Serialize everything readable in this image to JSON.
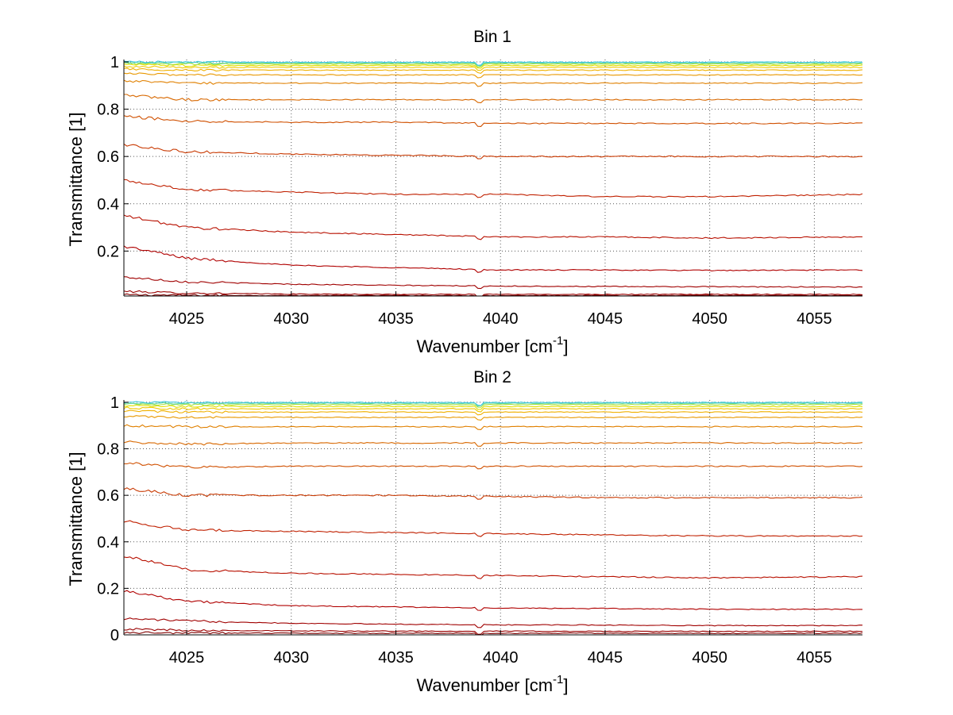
{
  "chart_data": [
    {
      "type": "line",
      "title": "Bin 1",
      "xlabel": "Wavenumber [cm",
      "xlabel_sup": "-1",
      "xlabel_end": "]",
      "ylabel": "Transmittance [1]",
      "xlim": [
        4022,
        4057.3
      ],
      "ylim": [
        0.01,
        1.01
      ],
      "xticks": [
        4025,
        4030,
        4035,
        4040,
        4045,
        4050,
        4055
      ],
      "xtick_labels": [
        "4025",
        "4030",
        "4035",
        "4040",
        "4045",
        "4050",
        "4055"
      ],
      "yticks": [
        0.2,
        0.4,
        0.6,
        0.8,
        1
      ],
      "ytick_labels": [
        "0.2",
        "0.4",
        "0.6",
        "0.8",
        "1"
      ],
      "grid": true,
      "series": [
        {
          "color": "#800000",
          "x": [
            4022,
            4025,
            4030,
            4035,
            4040,
            4045,
            4050,
            4057.3
          ],
          "values": [
            0.015,
            0.013,
            0.012,
            0.012,
            0.012,
            0.012,
            0.012,
            0.012
          ]
        },
        {
          "color": "#990000",
          "x": [
            4022,
            4025,
            4030,
            4035,
            4040,
            4045,
            4050,
            4057.3
          ],
          "values": [
            0.03,
            0.022,
            0.018,
            0.017,
            0.017,
            0.017,
            0.017,
            0.017
          ]
        },
        {
          "color": "#a00000",
          "x": [
            4022,
            4025,
            4030,
            4035,
            4040,
            4045,
            4050,
            4057.3
          ],
          "values": [
            0.09,
            0.07,
            0.06,
            0.055,
            0.052,
            0.05,
            0.049,
            0.048
          ]
        },
        {
          "color": "#b00000",
          "x": [
            4022,
            4025,
            4030,
            4035,
            4040,
            4045,
            4050,
            4057.3
          ],
          "values": [
            0.22,
            0.17,
            0.14,
            0.13,
            0.12,
            0.12,
            0.118,
            0.12
          ]
        },
        {
          "color": "#b81000",
          "x": [
            4022,
            4025,
            4030,
            4035,
            4040,
            4045,
            4050,
            4057.3
          ],
          "values": [
            0.35,
            0.3,
            0.28,
            0.27,
            0.26,
            0.26,
            0.255,
            0.26
          ]
        },
        {
          "color": "#c02000",
          "x": [
            4022,
            4025,
            4030,
            4035,
            4040,
            4045,
            4050,
            4057.3
          ],
          "values": [
            0.5,
            0.46,
            0.45,
            0.44,
            0.44,
            0.43,
            0.43,
            0.44
          ]
        },
        {
          "color": "#c83800",
          "x": [
            4022,
            4025,
            4030,
            4035,
            4040,
            4045,
            4050,
            4057.3
          ],
          "values": [
            0.65,
            0.62,
            0.61,
            0.605,
            0.6,
            0.6,
            0.6,
            0.6
          ]
        },
        {
          "color": "#d05000",
          "x": [
            4022,
            4025,
            4030,
            4035,
            4040,
            4045,
            4050,
            4057.3
          ],
          "values": [
            0.77,
            0.75,
            0.745,
            0.745,
            0.74,
            0.74,
            0.74,
            0.74
          ]
        },
        {
          "color": "#d86800",
          "x": [
            4022,
            4025,
            4030,
            4035,
            4040,
            4045,
            4050,
            4057.3
          ],
          "values": [
            0.86,
            0.84,
            0.84,
            0.84,
            0.84,
            0.84,
            0.84,
            0.84
          ]
        },
        {
          "color": "#e08000",
          "x": [
            4022,
            4025,
            4030,
            4035,
            4040,
            4045,
            4050,
            4057.3
          ],
          "values": [
            0.92,
            0.91,
            0.91,
            0.91,
            0.91,
            0.91,
            0.91,
            0.91
          ]
        },
        {
          "color": "#e89800",
          "x": [
            4022,
            4025,
            4030,
            4035,
            4040,
            4045,
            4050,
            4057.3
          ],
          "values": [
            0.95,
            0.945,
            0.945,
            0.945,
            0.945,
            0.945,
            0.945,
            0.945
          ]
        },
        {
          "color": "#f0b000",
          "x": [
            4022,
            4025,
            4030,
            4035,
            4040,
            4045,
            4050,
            4057.3
          ],
          "values": [
            0.97,
            0.965,
            0.965,
            0.965,
            0.965,
            0.965,
            0.965,
            0.965
          ]
        },
        {
          "color": "#f0c800",
          "x": [
            4022,
            4025,
            4030,
            4035,
            4040,
            4045,
            4050,
            4057.3
          ],
          "values": [
            0.98,
            0.977,
            0.977,
            0.977,
            0.977,
            0.977,
            0.977,
            0.977
          ]
        },
        {
          "color": "#e0e000",
          "x": [
            4022,
            4025,
            4030,
            4035,
            4040,
            4045,
            4050,
            4057.3
          ],
          "values": [
            0.988,
            0.985,
            0.985,
            0.985,
            0.985,
            0.985,
            0.985,
            0.985
          ]
        },
        {
          "color": "#a8e040",
          "x": [
            4022,
            4025,
            4030,
            4035,
            4040,
            4045,
            4050,
            4057.3
          ],
          "values": [
            0.993,
            0.991,
            0.991,
            0.991,
            0.991,
            0.991,
            0.991,
            0.991
          ]
        },
        {
          "color": "#60d8a0",
          "x": [
            4022,
            4025,
            4030,
            4035,
            4040,
            4045,
            4050,
            4057.3
          ],
          "values": [
            0.997,
            0.996,
            0.996,
            0.996,
            0.996,
            0.996,
            0.996,
            0.996
          ]
        },
        {
          "color": "#40c8e0",
          "x": [
            4022,
            4025,
            4030,
            4035,
            4040,
            4045,
            4050,
            4057.3
          ],
          "values": [
            1.0,
            0.999,
            0.999,
            0.999,
            0.999,
            0.999,
            0.999,
            0.999
          ]
        }
      ]
    },
    {
      "type": "line",
      "title": "Bin 2",
      "xlabel": "Wavenumber [cm",
      "xlabel_sup": "-1",
      "xlabel_end": "]",
      "ylabel": "Transmittance [1]",
      "xlim": [
        4022,
        4057.3
      ],
      "ylim": [
        0,
        1.01
      ],
      "xticks": [
        4025,
        4030,
        4035,
        4040,
        4045,
        4050,
        4055
      ],
      "xtick_labels": [
        "4025",
        "4030",
        "4035",
        "4040",
        "4045",
        "4050",
        "4055"
      ],
      "yticks": [
        0,
        0.2,
        0.4,
        0.6,
        0.8,
        1
      ],
      "ytick_labels": [
        "0",
        "0.2",
        "0.4",
        "0.6",
        "0.8",
        "1"
      ],
      "grid": true,
      "series": [
        {
          "color": "#800000",
          "x": [
            4022,
            4025,
            4030,
            4035,
            4040,
            4045,
            4050,
            4057.3
          ],
          "values": [
            0.01,
            0.008,
            0.007,
            0.007,
            0.007,
            0.007,
            0.006,
            0.007
          ]
        },
        {
          "color": "#990000",
          "x": [
            4022,
            4025,
            4030,
            4035,
            4040,
            4045,
            4050,
            4057.3
          ],
          "values": [
            0.025,
            0.02,
            0.017,
            0.016,
            0.016,
            0.015,
            0.015,
            0.015
          ]
        },
        {
          "color": "#a00000",
          "x": [
            4022,
            4025,
            4030,
            4035,
            4040,
            4045,
            4050,
            4057.3
          ],
          "values": [
            0.07,
            0.06,
            0.05,
            0.046,
            0.043,
            0.042,
            0.04,
            0.04
          ]
        },
        {
          "color": "#b00000",
          "x": [
            4022,
            4025,
            4030,
            4035,
            4040,
            4045,
            4050,
            4057.3
          ],
          "values": [
            0.19,
            0.145,
            0.125,
            0.12,
            0.115,
            0.113,
            0.11,
            0.11
          ]
        },
        {
          "color": "#b81000",
          "x": [
            4022,
            4025,
            4030,
            4035,
            4040,
            4045,
            4050,
            4057.3
          ],
          "values": [
            0.34,
            0.28,
            0.265,
            0.26,
            0.255,
            0.25,
            0.245,
            0.25
          ]
        },
        {
          "color": "#c02000",
          "x": [
            4022,
            4025,
            4030,
            4035,
            4040,
            4045,
            4050,
            4057.3
          ],
          "values": [
            0.49,
            0.45,
            0.445,
            0.44,
            0.435,
            0.43,
            0.425,
            0.425
          ]
        },
        {
          "color": "#c83800",
          "x": [
            4022,
            4025,
            4030,
            4035,
            4040,
            4045,
            4050,
            4057.3
          ],
          "values": [
            0.63,
            0.6,
            0.6,
            0.6,
            0.595,
            0.59,
            0.59,
            0.59
          ]
        },
        {
          "color": "#d05000",
          "x": [
            4022,
            4025,
            4030,
            4035,
            4040,
            4045,
            4050,
            4057.3
          ],
          "values": [
            0.74,
            0.72,
            0.725,
            0.725,
            0.725,
            0.725,
            0.725,
            0.725
          ]
        },
        {
          "color": "#d86800",
          "x": [
            4022,
            4025,
            4030,
            4035,
            4040,
            4045,
            4050,
            4057.3
          ],
          "values": [
            0.83,
            0.82,
            0.825,
            0.825,
            0.825,
            0.825,
            0.825,
            0.825
          ]
        },
        {
          "color": "#e08000",
          "x": [
            4022,
            4025,
            4030,
            4035,
            4040,
            4045,
            4050,
            4057.3
          ],
          "values": [
            0.9,
            0.895,
            0.895,
            0.895,
            0.895,
            0.895,
            0.895,
            0.895
          ]
        },
        {
          "color": "#e89800",
          "x": [
            4022,
            4025,
            4030,
            4035,
            4040,
            4045,
            4050,
            4057.3
          ],
          "values": [
            0.94,
            0.935,
            0.935,
            0.935,
            0.935,
            0.935,
            0.935,
            0.935
          ]
        },
        {
          "color": "#f0b000",
          "x": [
            4022,
            4025,
            4030,
            4035,
            4040,
            4045,
            4050,
            4057.3
          ],
          "values": [
            0.962,
            0.958,
            0.958,
            0.958,
            0.958,
            0.958,
            0.958,
            0.958
          ]
        },
        {
          "color": "#f0c800",
          "x": [
            4022,
            4025,
            4030,
            4035,
            4040,
            4045,
            4050,
            4057.3
          ],
          "values": [
            0.976,
            0.972,
            0.972,
            0.972,
            0.972,
            0.972,
            0.972,
            0.972
          ]
        },
        {
          "color": "#e0e000",
          "x": [
            4022,
            4025,
            4030,
            4035,
            4040,
            4045,
            4050,
            4057.3
          ],
          "values": [
            0.985,
            0.982,
            0.982,
            0.982,
            0.982,
            0.982,
            0.982,
            0.982
          ]
        },
        {
          "color": "#a8e040",
          "x": [
            4022,
            4025,
            4030,
            4035,
            4040,
            4045,
            4050,
            4057.3
          ],
          "values": [
            0.992,
            0.99,
            0.99,
            0.99,
            0.99,
            0.99,
            0.99,
            0.99
          ]
        },
        {
          "color": "#60d8a0",
          "x": [
            4022,
            4025,
            4030,
            4035,
            4040,
            4045,
            4050,
            4057.3
          ],
          "values": [
            0.997,
            0.996,
            0.996,
            0.996,
            0.996,
            0.996,
            0.996,
            0.996
          ]
        },
        {
          "color": "#40c8e0",
          "x": [
            4022,
            4025,
            4030,
            4035,
            4040,
            4045,
            4050,
            4057.3
          ],
          "values": [
            1.0,
            0.999,
            0.999,
            0.999,
            0.999,
            0.999,
            0.999,
            0.999
          ]
        }
      ]
    }
  ]
}
